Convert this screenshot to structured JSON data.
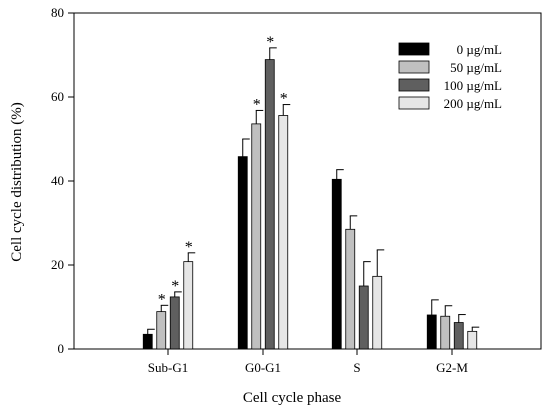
{
  "chart_data": {
    "type": "bar",
    "title": "",
    "xlabel": "Cell cycle phase",
    "ylabel": "Cell cycle distribution (%)",
    "ylim": [
      0,
      80
    ],
    "yticks": [
      0,
      20,
      40,
      60,
      80
    ],
    "categories": [
      "Sub-G1",
      "G0-G1",
      "S",
      "G2-M"
    ],
    "significance_marker": "*",
    "legend_position": "top-right",
    "series": [
      {
        "name": "0  µg/mL",
        "color": "#000000",
        "values": [
          3.5,
          45.8,
          40.4,
          8.1
        ],
        "errors": [
          1.2,
          4.2,
          2.3,
          3.6
        ],
        "significant": [
          false,
          false,
          false,
          false
        ]
      },
      {
        "name": "50  µg/mL",
        "color": "#c0c0c0",
        "values": [
          8.9,
          53.6,
          28.5,
          7.8
        ],
        "errors": [
          1.5,
          3.2,
          3.2,
          2.5
        ],
        "significant": [
          true,
          true,
          false,
          false
        ]
      },
      {
        "name": "100  µg/mL",
        "color": "#5f5f5f",
        "values": [
          12.4,
          68.9,
          15.0,
          6.3
        ],
        "errors": [
          1.2,
          2.8,
          5.8,
          1.9
        ],
        "significant": [
          true,
          true,
          false,
          false
        ]
      },
      {
        "name": "200  µg/mL",
        "color": "#e6e6e6",
        "values": [
          20.8,
          55.6,
          17.3,
          4.2
        ],
        "errors": [
          2.1,
          2.6,
          6.3,
          1.0
        ],
        "significant": [
          true,
          true,
          false,
          false
        ]
      }
    ]
  }
}
